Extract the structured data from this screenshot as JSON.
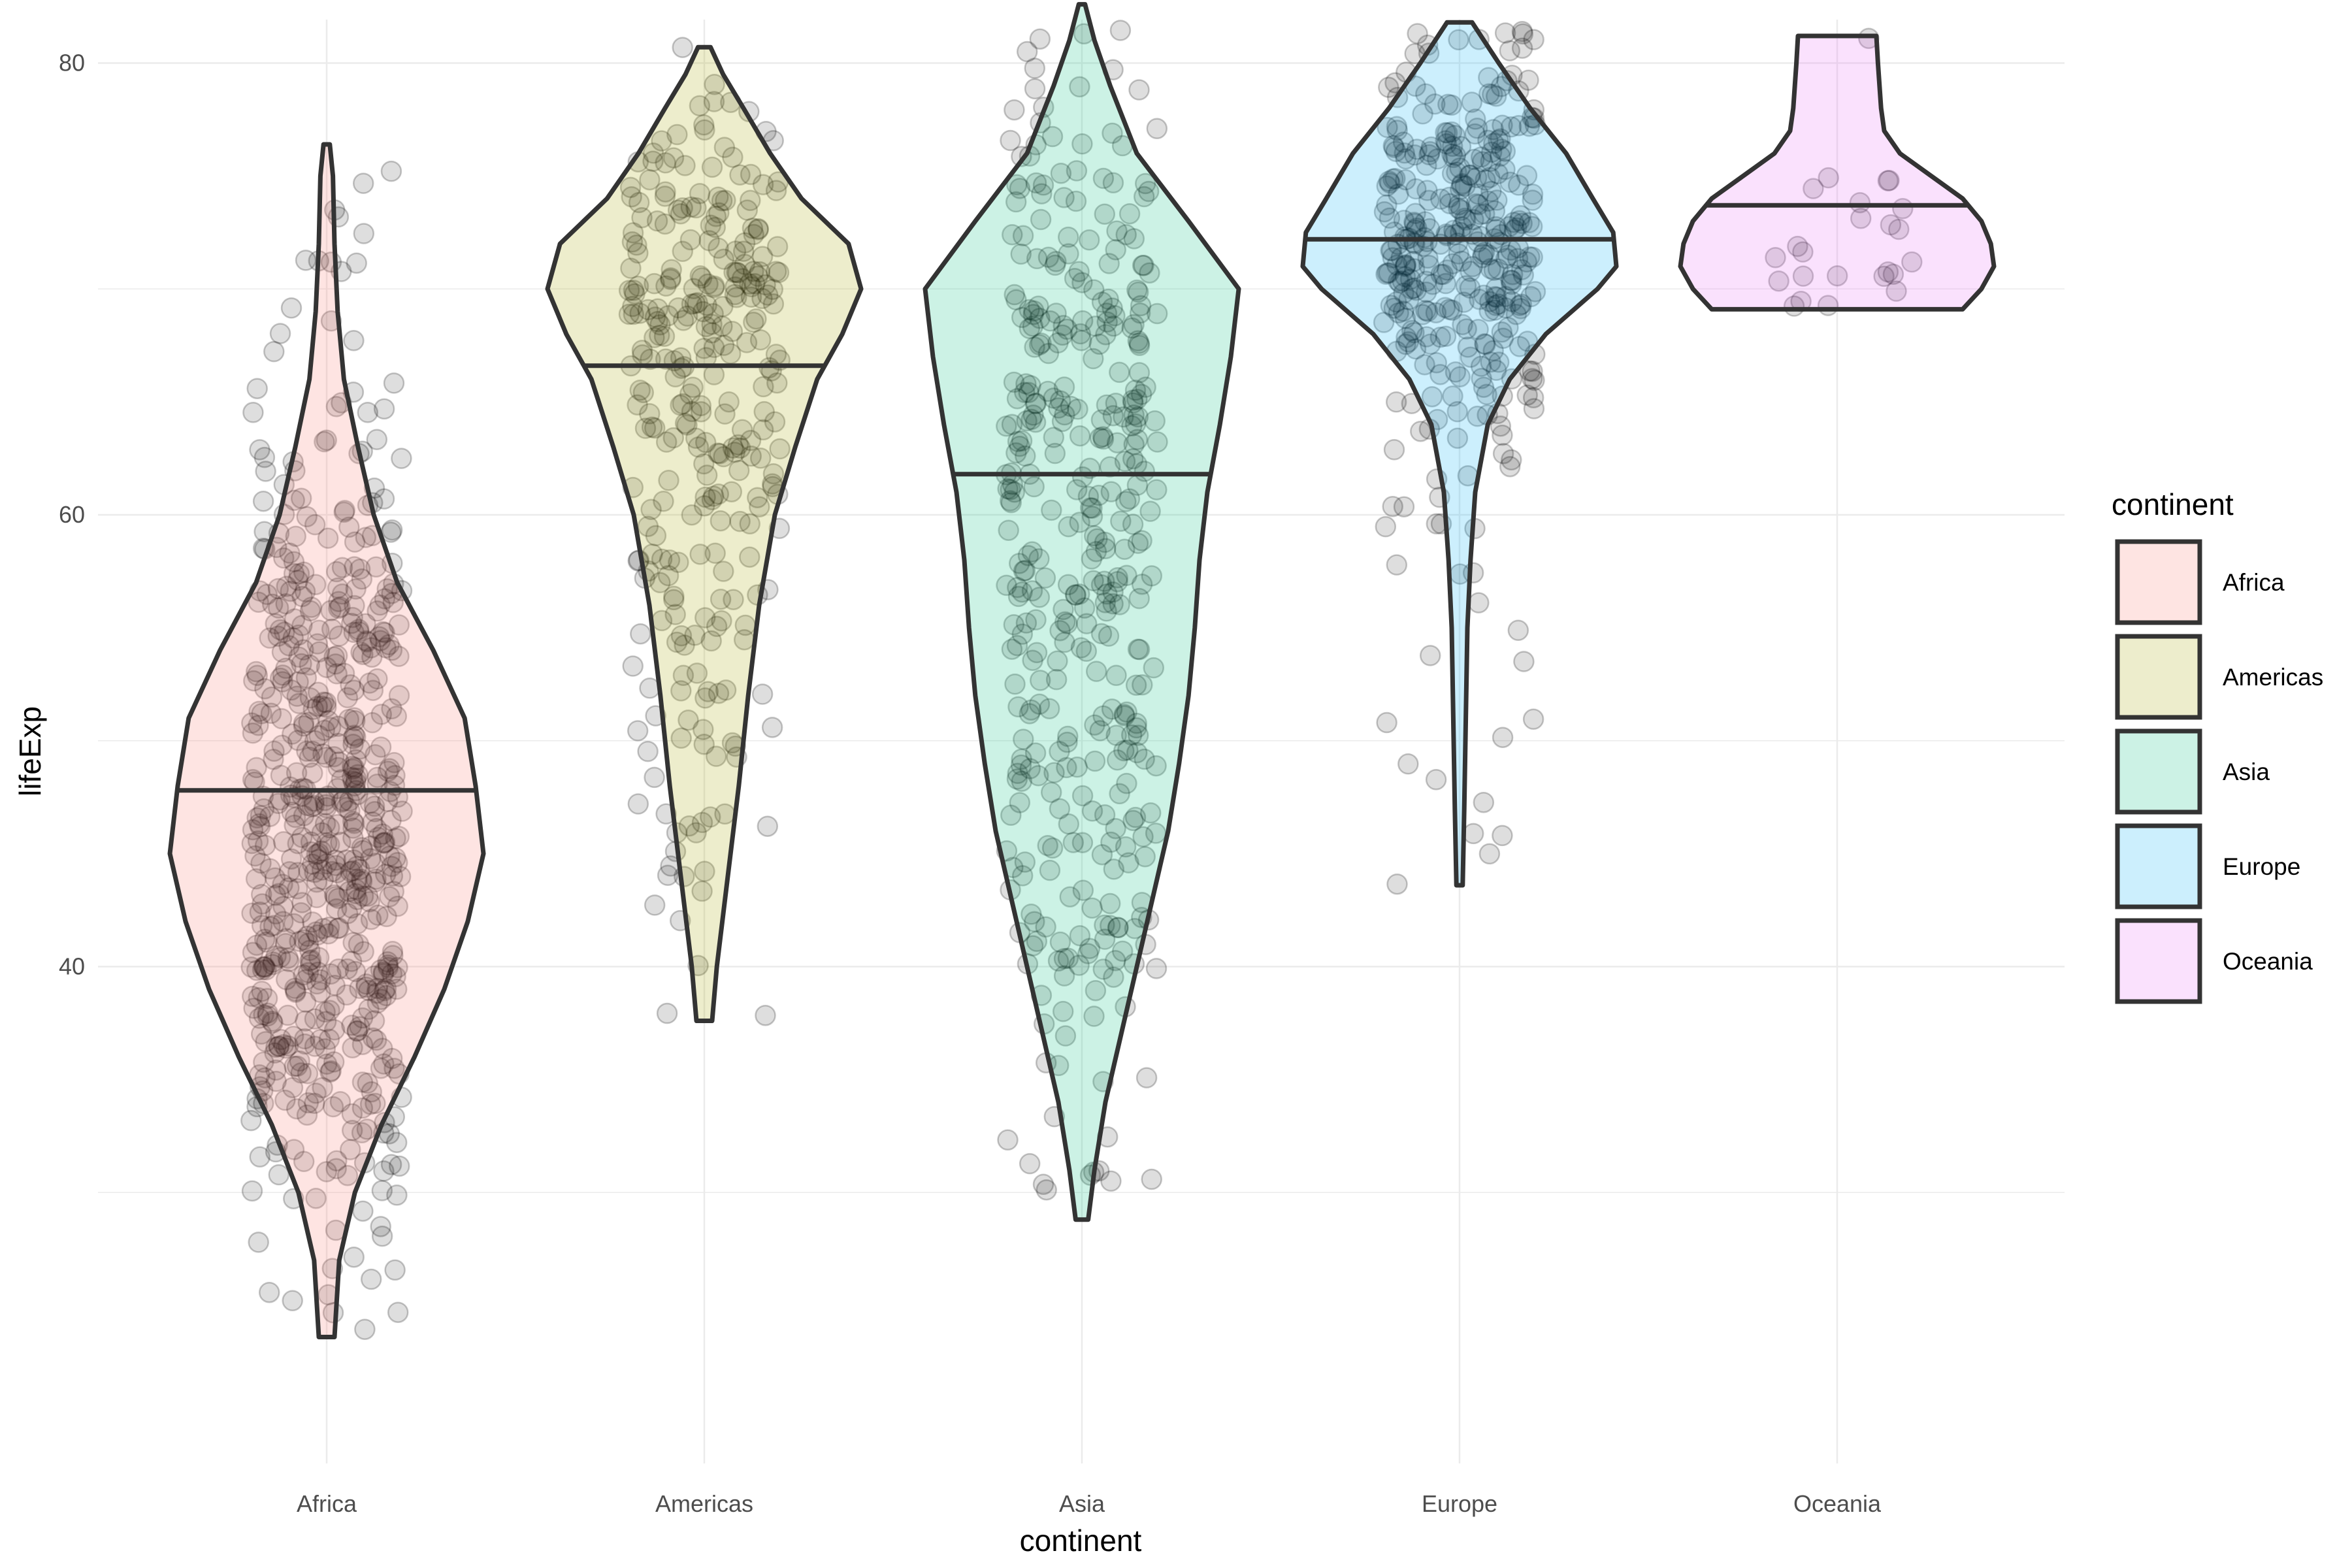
{
  "chart_data": {
    "type": "violin",
    "xlabel": "continent",
    "ylabel": "lifeExp",
    "ylim": [
      22.5,
      85.5
    ],
    "y_ticks": [
      40,
      60,
      80
    ],
    "grid": true,
    "legend_title": "continent",
    "legend_position": "right",
    "categories": [
      "Africa",
      "Americas",
      "Asia",
      "Europe",
      "Oceania"
    ],
    "colors": {
      "Africa": "#F8766D",
      "Americas": "#A3A500",
      "Asia": "#00BF7D",
      "Europe": "#00B0F6",
      "Oceania": "#E76BF3"
    },
    "series": [
      {
        "name": "Africa",
        "min": 23.6,
        "max": 76.4,
        "median": 47.8,
        "n": 624,
        "mode": 45,
        "density": [
          [
            23.6,
            0.05
          ],
          [
            27,
            0.08
          ],
          [
            30,
            0.18
          ],
          [
            33,
            0.35
          ],
          [
            36,
            0.56
          ],
          [
            39,
            0.75
          ],
          [
            42,
            0.9
          ],
          [
            45,
            1.0
          ],
          [
            48,
            0.95
          ],
          [
            51,
            0.88
          ],
          [
            54,
            0.68
          ],
          [
            57,
            0.45
          ],
          [
            60,
            0.3
          ],
          [
            63,
            0.2
          ],
          [
            66,
            0.11
          ],
          [
            69,
            0.07
          ],
          [
            72,
            0.05
          ],
          [
            75,
            0.04
          ],
          [
            76.4,
            0.02
          ]
        ]
      },
      {
        "name": "Americas",
        "min": 37.6,
        "max": 80.7,
        "median": 66.6,
        "n": 300,
        "mode": 70,
        "density": [
          [
            37.6,
            0.05
          ],
          [
            40,
            0.08
          ],
          [
            44,
            0.15
          ],
          [
            48,
            0.22
          ],
          [
            52,
            0.28
          ],
          [
            56,
            0.35
          ],
          [
            60,
            0.45
          ],
          [
            63,
            0.58
          ],
          [
            66,
            0.72
          ],
          [
            68,
            0.88
          ],
          [
            70,
            1.0
          ],
          [
            72,
            0.92
          ],
          [
            74,
            0.62
          ],
          [
            76,
            0.42
          ],
          [
            78,
            0.25
          ],
          [
            79.5,
            0.12
          ],
          [
            80.7,
            0.04
          ]
        ]
      },
      {
        "name": "Asia",
        "min": 28.8,
        "max": 82.6,
        "median": 61.8,
        "n": 396,
        "mode": 70,
        "density": [
          [
            28.8,
            0.04
          ],
          [
            31,
            0.08
          ],
          [
            34,
            0.15
          ],
          [
            37,
            0.25
          ],
          [
            40,
            0.35
          ],
          [
            43,
            0.45
          ],
          [
            46,
            0.55
          ],
          [
            49,
            0.62
          ],
          [
            52,
            0.68
          ],
          [
            55,
            0.72
          ],
          [
            58,
            0.75
          ],
          [
            61,
            0.8
          ],
          [
            64,
            0.88
          ],
          [
            67,
            0.95
          ],
          [
            70,
            1.0
          ],
          [
            73,
            0.68
          ],
          [
            76,
            0.35
          ],
          [
            79,
            0.18
          ],
          [
            81,
            0.08
          ],
          [
            82.6,
            0.02
          ]
        ]
      },
      {
        "name": "Europe",
        "min": 43.6,
        "max": 81.8,
        "median": 72.2,
        "n": 360,
        "mode": 71,
        "density": [
          [
            43.6,
            0.02
          ],
          [
            47,
            0.03
          ],
          [
            51,
            0.04
          ],
          [
            55,
            0.05
          ],
          [
            58,
            0.07
          ],
          [
            61,
            0.1
          ],
          [
            64,
            0.18
          ],
          [
            66,
            0.32
          ],
          [
            68,
            0.55
          ],
          [
            70,
            0.88
          ],
          [
            71,
            1.0
          ],
          [
            72.5,
            0.98
          ],
          [
            74,
            0.85
          ],
          [
            76,
            0.68
          ],
          [
            78,
            0.45
          ],
          [
            80,
            0.25
          ],
          [
            81.8,
            0.08
          ]
        ]
      },
      {
        "name": "Oceania",
        "min": 69.1,
        "max": 81.2,
        "median": 73.7,
        "n": 24,
        "mode": 71,
        "density": [
          [
            69.1,
            0.8
          ],
          [
            70,
            0.92
          ],
          [
            71,
            1.0
          ],
          [
            72,
            0.98
          ],
          [
            73,
            0.92
          ],
          [
            74,
            0.8
          ],
          [
            75,
            0.6
          ],
          [
            76,
            0.4
          ],
          [
            77,
            0.3
          ],
          [
            78,
            0.28
          ],
          [
            79,
            0.27
          ],
          [
            80,
            0.26
          ],
          [
            81.2,
            0.25
          ]
        ]
      }
    ]
  }
}
